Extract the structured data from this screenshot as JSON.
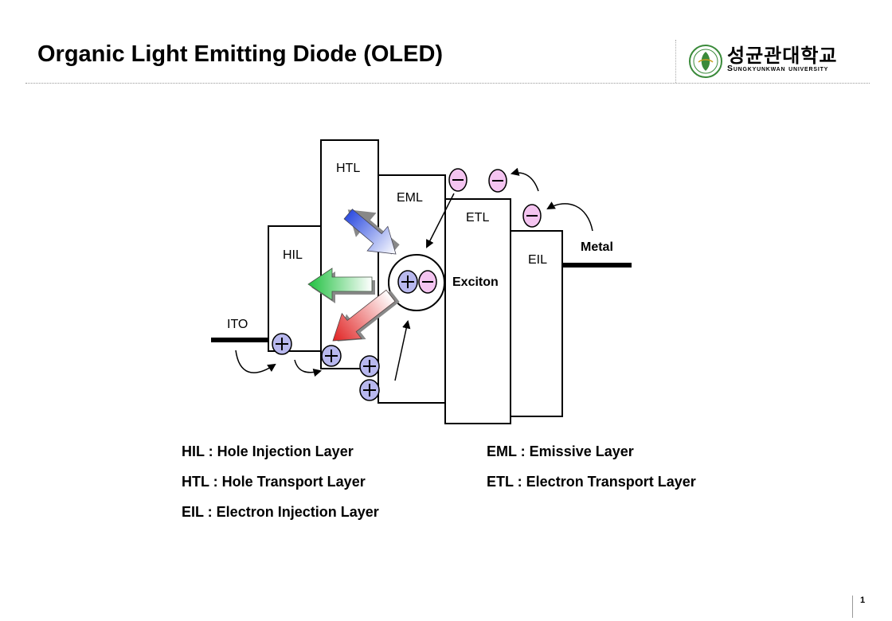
{
  "slide": {
    "title": "Organic Light Emitting Diode (OLED)",
    "page_number": "1"
  },
  "logo": {
    "korean": "성균관대학교",
    "english": "Sungkyunkwan University"
  },
  "diagram": {
    "layers": {
      "ito": "ITO",
      "hil": "HIL",
      "htl": "HTL",
      "eml": "EML",
      "etl": "ETL",
      "eil": "EIL",
      "metal": "Metal",
      "exciton": "Exciton"
    },
    "colors": {
      "hole": "#b8b8ee",
      "electron": "#f4c4f0",
      "arrow_blue": "#2f4ee0",
      "arrow_green": "#20c040",
      "arrow_red": "#e02020"
    }
  },
  "legend": {
    "hil": "HIL : Hole Injection Layer",
    "htl": "HTL : Hole Transport Layer",
    "eil": "EIL : Electron Injection Layer",
    "eml": "EML : Emissive Layer",
    "etl": "ETL : Electron Transport Layer"
  }
}
